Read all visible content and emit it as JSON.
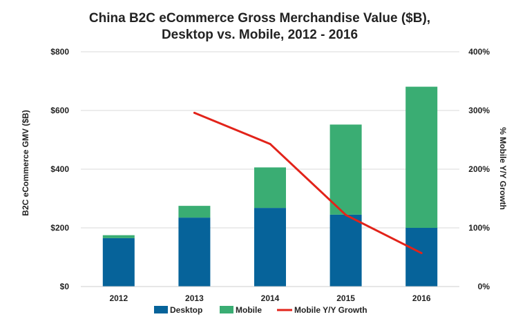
{
  "chart_data": {
    "type": "bar",
    "stacked": true,
    "title": [
      "China B2C eCommerce Gross Merchandise Value ($B),",
      "Desktop vs. Mobile, 2012 - 2016"
    ],
    "categories": [
      "2012",
      "2013",
      "2014",
      "2015",
      "2016"
    ],
    "series": [
      {
        "name": "Desktop",
        "type": "bar",
        "axis": "left",
        "color": "#06639a",
        "values": [
          165,
          235,
          268,
          245,
          200
        ]
      },
      {
        "name": "Mobile",
        "type": "bar",
        "axis": "left",
        "color": "#3aad73",
        "values": [
          10,
          40,
          138,
          307,
          481
        ]
      },
      {
        "name": "Mobile Y/Y Growth",
        "type": "line",
        "axis": "right",
        "color": "#e2231a",
        "values": [
          null,
          296,
          243,
          122,
          57
        ]
      }
    ],
    "ylabel": "B2C eCommerce GMV ($B)",
    "ylim": [
      0,
      800
    ],
    "yticks": [
      0,
      200,
      400,
      600,
      800
    ],
    "ytick_labels": [
      "$0",
      "$200",
      "$400",
      "$600",
      "$800"
    ],
    "y2label": "% Mobile Y/Y Growth",
    "y2lim": [
      0,
      400
    ],
    "y2ticks": [
      0,
      100,
      200,
      300,
      400
    ],
    "y2tick_labels": [
      "0%",
      "100%",
      "200%",
      "300%",
      "400%"
    ],
    "grid": true,
    "legend": "bottom"
  }
}
